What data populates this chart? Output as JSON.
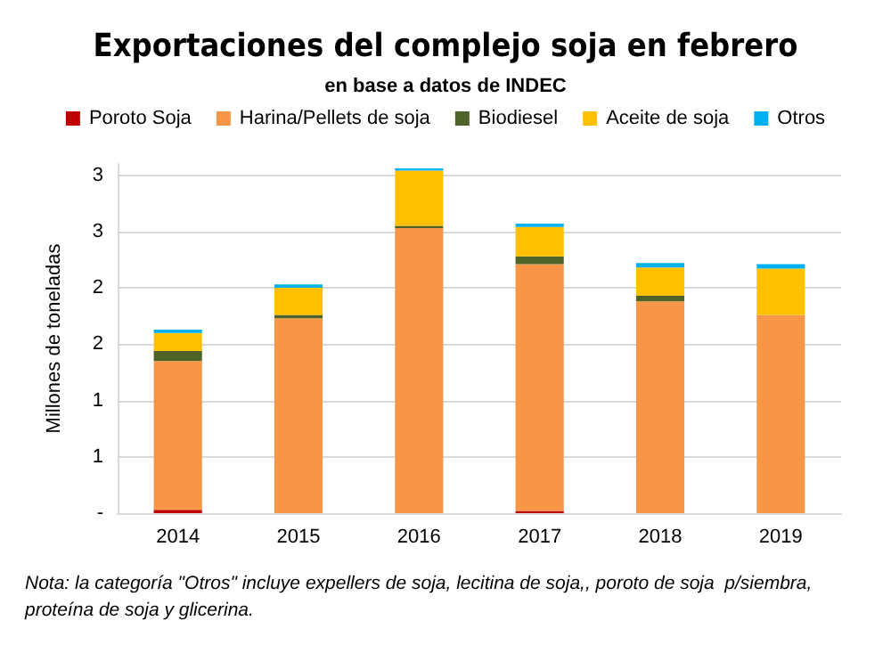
{
  "chart_data": {
    "type": "bar",
    "title": "Exportaciones del complejo soja en febrero",
    "subtitle": "en base a datos de INDEC",
    "ylabel": "Millones de toneladas",
    "categories": [
      "2014",
      "2015",
      "2016",
      "2017",
      "2018",
      "2019"
    ],
    "series": [
      {
        "name": "Poroto Soja",
        "color": "#c00000",
        "values": [
          0.03,
          0,
          0,
          0.02,
          0,
          0
        ]
      },
      {
        "name": "Harina/Pellets de soja",
        "color": "#f79646",
        "values": [
          1.32,
          1.73,
          2.53,
          2.19,
          1.88,
          1.76
        ]
      },
      {
        "name": "Biodiesel",
        "color": "#4f6228",
        "values": [
          0.09,
          0.03,
          0.02,
          0.07,
          0.05,
          0
        ]
      },
      {
        "name": "Aceite de soja",
        "color": "#ffc000",
        "values": [
          0.16,
          0.24,
          0.49,
          0.26,
          0.25,
          0.41
        ]
      },
      {
        "name": "Otros",
        "color": "#00b0f0",
        "values": [
          0.03,
          0.03,
          0.02,
          0.03,
          0.04,
          0.04
        ]
      }
    ],
    "stacked": true,
    "ylim": [
      0,
      3.1
    ],
    "yticks": [
      {
        "value": 0,
        "label": "-"
      },
      {
        "value": 0.5,
        "label": "1"
      },
      {
        "value": 1,
        "label": "1"
      },
      {
        "value": 1.5,
        "label": "2"
      },
      {
        "value": 2,
        "label": "2"
      },
      {
        "value": 2.5,
        "label": "3"
      },
      {
        "value": 3,
        "label": "3"
      }
    ],
    "grid": "y",
    "legend": "top",
    "annotations": [
      "Nota: la categoría \"Otros\" incluye expellers de soja, lecitina de soja,, poroto de soja  p/siembra, proteína de soja y glicerina."
    ]
  }
}
